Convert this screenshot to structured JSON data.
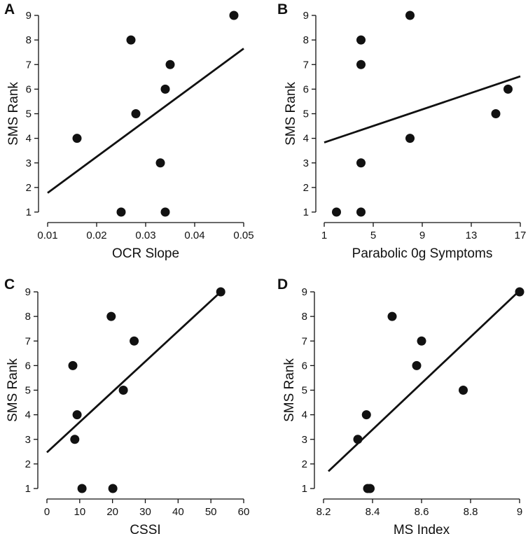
{
  "chart_data": [
    {
      "type": "scatter",
      "panel": "A",
      "xlabel": "OCR Slope",
      "ylabel": "SMS Rank",
      "xlim": [
        0.01,
        0.05
      ],
      "ylim": [
        1,
        9
      ],
      "xticks": [
        0.01,
        0.02,
        0.03,
        0.04,
        0.05
      ],
      "xtick_labels": [
        "0.01",
        "0.02",
        "0.03",
        "0.04",
        "0.05"
      ],
      "yticks": [
        1,
        2,
        3,
        4,
        5,
        6,
        7,
        8,
        9
      ],
      "ytick_labels": [
        "1",
        "2",
        "3",
        "4",
        "5",
        "6",
        "7",
        "8",
        "9"
      ],
      "points": [
        {
          "x": 0.016,
          "y": 4
        },
        {
          "x": 0.025,
          "y": 1
        },
        {
          "x": 0.027,
          "y": 8
        },
        {
          "x": 0.028,
          "y": 5
        },
        {
          "x": 0.033,
          "y": 3
        },
        {
          "x": 0.034,
          "y": 1
        },
        {
          "x": 0.034,
          "y": 6
        },
        {
          "x": 0.035,
          "y": 7
        },
        {
          "x": 0.048,
          "y": 9
        }
      ],
      "fit_line": {
        "x": [
          0.01,
          0.05
        ],
        "y": [
          1.78,
          7.65
        ]
      },
      "grid": false
    },
    {
      "type": "scatter",
      "panel": "B",
      "xlabel": "Parabolic 0g Symptoms",
      "ylabel": "SMS Rank",
      "xlim": [
        1,
        17
      ],
      "ylim": [
        1,
        9
      ],
      "xticks": [
        1,
        5,
        9,
        13,
        17
      ],
      "xtick_labels": [
        "1",
        "5",
        "9",
        "13",
        "17"
      ],
      "yticks": [
        1,
        2,
        3,
        4,
        5,
        6,
        7,
        8,
        9
      ],
      "ytick_labels": [
        "1",
        "2",
        "3",
        "4",
        "5",
        "6",
        "7",
        "8",
        "9"
      ],
      "points": [
        {
          "x": 2,
          "y": 1
        },
        {
          "x": 4,
          "y": 1
        },
        {
          "x": 4,
          "y": 3
        },
        {
          "x": 4,
          "y": 7
        },
        {
          "x": 4,
          "y": 8
        },
        {
          "x": 8,
          "y": 9
        },
        {
          "x": 8,
          "y": 4
        },
        {
          "x": 15,
          "y": 5
        },
        {
          "x": 16,
          "y": 6
        }
      ],
      "fit_line": {
        "x": [
          1,
          17
        ],
        "y": [
          3.83,
          6.52
        ]
      },
      "grid": false
    },
    {
      "type": "scatter",
      "panel": "C",
      "xlabel": "CSSI",
      "ylabel": "SMS Rank",
      "xlim": [
        0,
        60
      ],
      "ylim": [
        1,
        9
      ],
      "xticks": [
        0,
        10,
        20,
        30,
        40,
        50,
        60
      ],
      "xtick_labels": [
        "0",
        "10",
        "20",
        "30",
        "40",
        "50",
        "60"
      ],
      "yticks": [
        1,
        2,
        3,
        4,
        5,
        6,
        7,
        8,
        9
      ],
      "ytick_labels": [
        "1",
        "2",
        "3",
        "4",
        "5",
        "6",
        "7",
        "8",
        "9"
      ],
      "points": [
        {
          "x": 7.9,
          "y": 6
        },
        {
          "x": 8.5,
          "y": 3
        },
        {
          "x": 9.2,
          "y": 4
        },
        {
          "x": 10.7,
          "y": 1
        },
        {
          "x": 19.6,
          "y": 8
        },
        {
          "x": 20.1,
          "y": 1
        },
        {
          "x": 23.3,
          "y": 5
        },
        {
          "x": 26.6,
          "y": 7
        },
        {
          "x": 53.0,
          "y": 9
        }
      ],
      "fit_line": {
        "x": [
          0,
          53
        ],
        "y": [
          2.47,
          9.0
        ]
      },
      "grid": false
    },
    {
      "type": "scatter",
      "panel": "D",
      "xlabel": "MS Index",
      "ylabel": "SMS Rank",
      "xlim": [
        8.2,
        9
      ],
      "ylim": [
        1,
        9
      ],
      "xticks": [
        8.2,
        8.4,
        8.6,
        8.8,
        9
      ],
      "xtick_labels": [
        "8.2",
        "8.4",
        "8.6",
        "8.8",
        "9"
      ],
      "yticks": [
        1,
        2,
        3,
        4,
        5,
        6,
        7,
        8,
        9
      ],
      "ytick_labels": [
        "1",
        "2",
        "3",
        "4",
        "5",
        "6",
        "7",
        "8",
        "9"
      ],
      "points": [
        {
          "x": 8.34,
          "y": 3
        },
        {
          "x": 8.375,
          "y": 4
        },
        {
          "x": 8.38,
          "y": 1
        },
        {
          "x": 8.39,
          "y": 1
        },
        {
          "x": 8.48,
          "y": 8
        },
        {
          "x": 8.58,
          "y": 6
        },
        {
          "x": 8.6,
          "y": 7
        },
        {
          "x": 8.77,
          "y": 5
        },
        {
          "x": 9.0,
          "y": 9
        }
      ],
      "fit_line": {
        "x": [
          8.22,
          9.0
        ],
        "y": [
          1.7,
          9.05
        ]
      },
      "grid": false
    }
  ]
}
